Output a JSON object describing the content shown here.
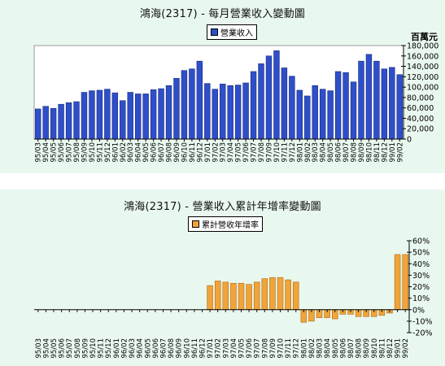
{
  "chart_data": [
    {
      "type": "bar",
      "title": "鴻海(2317) - 每月營業收入變動圖",
      "legend": "營業收入",
      "legend_position": "top-center",
      "ylabel": "百萬元",
      "ylim": [
        0,
        180000
      ],
      "yticks": [
        0,
        20000,
        40000,
        60000,
        80000,
        100000,
        120000,
        140000,
        160000,
        180000
      ],
      "ytick_labels": [
        "0",
        "20,000",
        "40,000",
        "60,000",
        "80,000",
        "100,000",
        "120,000",
        "140,000",
        "160,000",
        "180,000"
      ],
      "grid": false,
      "color": "#2e4fc9",
      "categories": [
        "95/03",
        "95/04",
        "95/05",
        "95/06",
        "95/07",
        "95/08",
        "95/09",
        "95/10",
        "95/11",
        "95/12",
        "96/01",
        "96/02",
        "96/03",
        "96/04",
        "96/05",
        "96/06",
        "96/07",
        "96/08",
        "96/09",
        "96/10",
        "96/11",
        "96/12",
        "97/01",
        "97/02",
        "97/03",
        "97/04",
        "97/05",
        "97/06",
        "97/07",
        "97/08",
        "97/09",
        "97/10",
        "97/11",
        "97/12",
        "98/01",
        "98/02",
        "98/03",
        "98/04",
        "98/05",
        "98/06",
        "98/07",
        "98/08",
        "98/09",
        "98/10",
        "98/11",
        "98/12",
        "99/01",
        "99/02"
      ],
      "values": [
        58000,
        63000,
        59000,
        67000,
        70000,
        72000,
        90000,
        93000,
        94000,
        96000,
        89000,
        74000,
        90000,
        87000,
        87000,
        95000,
        97000,
        103000,
        117000,
        132000,
        135000,
        150000,
        107000,
        96000,
        106000,
        103000,
        104000,
        108000,
        130000,
        145000,
        160000,
        170000,
        137000,
        121000,
        94000,
        83000,
        103000,
        96000,
        93000,
        130000,
        128000,
        110000,
        150000,
        163000,
        150000,
        135000,
        138000,
        124000
      ]
    },
    {
      "type": "bar",
      "title": "鴻海(2317) - 營業收入累計年增率變動圖",
      "legend": "累計營收年增率",
      "legend_position": "top-center",
      "ylim": [
        -20,
        60
      ],
      "yticks": [
        -20,
        -10,
        0,
        10,
        20,
        30,
        40,
        50,
        60
      ],
      "ytick_labels": [
        "-20%",
        "-10%",
        "0%",
        "10%",
        "20%",
        "30%",
        "40%",
        "50%",
        "60%"
      ],
      "y_axis_side": "right",
      "grid": false,
      "color": "#f0a43a",
      "categories": [
        "95/03",
        "95/04",
        "95/05",
        "95/06",
        "95/07",
        "95/08",
        "95/09",
        "95/10",
        "95/11",
        "95/12",
        "96/01",
        "96/02",
        "96/03",
        "96/04",
        "96/05",
        "96/06",
        "96/07",
        "96/08",
        "96/09",
        "96/10",
        "96/11",
        "96/12",
        "97/01",
        "97/02",
        "97/03",
        "97/04",
        "97/05",
        "97/06",
        "97/07",
        "97/08",
        "97/09",
        "97/10",
        "97/11",
        "97/12",
        "98/01",
        "98/02",
        "98/03",
        "98/04",
        "98/05",
        "98/06",
        "98/07",
        "98/08",
        "98/09",
        "98/10",
        "98/11",
        "98/12",
        "99/01",
        "99/02"
      ],
      "values": [
        0,
        0,
        0,
        0,
        0,
        0,
        0,
        0,
        0,
        0,
        0,
        0,
        0,
        0,
        0,
        0,
        0,
        0,
        0,
        0,
        0,
        0,
        21,
        25,
        24,
        23,
        23,
        22,
        24,
        27,
        28,
        28,
        26,
        24,
        -11,
        -10,
        -7,
        -7,
        -8,
        -4,
        -4,
        -6,
        -6,
        -6,
        -5,
        -3,
        48,
        48
      ]
    }
  ]
}
